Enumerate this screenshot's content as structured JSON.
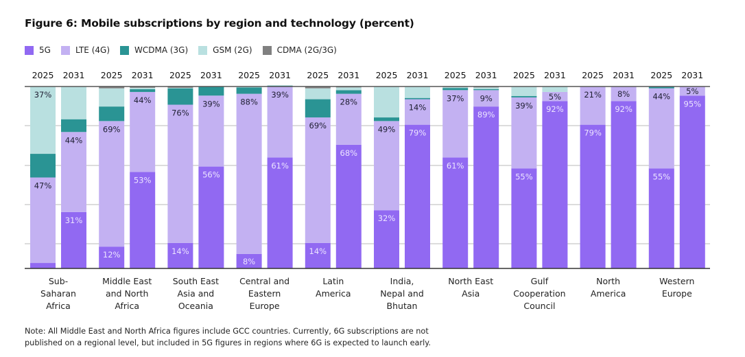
{
  "title": "Figure 6: Mobile subscriptions by region and technology (percent)",
  "note": [
    "Note: All Middle East and North Africa figures include GCC countries. Currently, 6G subscriptions are not",
    "published on a regional level, but included in 5G figures in regions where 6G is expected to launch early."
  ],
  "legend": [
    {
      "name": "5G",
      "color": "#9169F2"
    },
    {
      "name": "LTE (4G)",
      "color": "#C3B1F2"
    },
    {
      "name": "WCDMA (3G)",
      "color": "#2A9494"
    },
    {
      "name": "GSM (2G)",
      "color": "#B9E0E0"
    },
    {
      "name": "CDMA (2G/3G)",
      "color": "#808080"
    }
  ],
  "chart_data": {
    "type": "bar",
    "stacked": true,
    "title": "Figure 6: Mobile subscriptions by region and technology (percent)",
    "xlabel": "",
    "ylabel": "",
    "ylim": [
      0,
      100
    ],
    "grid": true,
    "legend_position": "top-left",
    "years": [
      "2025",
      "2031"
    ],
    "categories": [
      "Sub-Saharan Africa",
      "Middle East and North Africa",
      "South East Asia and Oceania",
      "Central and Eastern Europe",
      "Latin America",
      "India, Nepal and Bhutan",
      "North East Asia",
      "Gulf Cooperation Council",
      "North America",
      "Western Europe"
    ],
    "category_lines": [
      [
        "Sub-",
        "Saharan",
        "Africa"
      ],
      [
        "Middle East",
        "and North",
        "Africa"
      ],
      [
        "South East",
        "Asia and",
        "Oceania"
      ],
      [
        "Central and",
        "Eastern",
        "Europe"
      ],
      [
        "Latin",
        "America"
      ],
      [
        "India,",
        "Nepal and",
        "Bhutan"
      ],
      [
        "North East",
        "Asia"
      ],
      [
        "Gulf",
        "Cooperation",
        "Council"
      ],
      [
        "North",
        "America"
      ],
      [
        "Western",
        "Europe"
      ]
    ],
    "series_order": [
      "5G",
      "LTE (4G)",
      "WCDMA (3G)",
      "GSM (2G)",
      "CDMA (2G/3G)"
    ],
    "bars": [
      {
        "region": "Sub-Saharan Africa",
        "year": "2025",
        "values": [
          3,
          47,
          13,
          37,
          0
        ],
        "labels": [
          "",
          "47%",
          "",
          "37%",
          ""
        ]
      },
      {
        "region": "Sub-Saharan Africa",
        "year": "2031",
        "values": [
          31,
          44,
          7,
          18,
          0
        ],
        "labels": [
          "31%",
          "44%",
          "",
          "",
          ""
        ]
      },
      {
        "region": "Middle East and North Africa",
        "year": "2025",
        "values": [
          12,
          69,
          8,
          10,
          1
        ],
        "labels": [
          "12%",
          "69%",
          "",
          "",
          ""
        ]
      },
      {
        "region": "Middle East and North Africa",
        "year": "2031",
        "values": [
          53,
          44,
          1.5,
          0.8,
          0.7
        ],
        "labels": [
          "53%",
          "44%",
          "",
          "",
          ""
        ]
      },
      {
        "region": "South East Asia and Oceania",
        "year": "2025",
        "values": [
          14,
          76,
          9,
          0.3,
          0.7
        ],
        "labels": [
          "14%",
          "76%",
          "",
          "",
          ""
        ]
      },
      {
        "region": "South East Asia and Oceania",
        "year": "2031",
        "values": [
          56,
          39,
          5,
          0,
          0
        ],
        "labels": [
          "56%",
          "39%",
          "",
          "",
          ""
        ]
      },
      {
        "region": "Central and Eastern Europe",
        "year": "2025",
        "values": [
          8,
          88,
          3.5,
          0.5,
          0
        ],
        "labels": [
          "8%",
          "88%",
          "",
          "",
          ""
        ]
      },
      {
        "region": "Central and Eastern Europe",
        "year": "2031",
        "values": [
          61,
          39,
          0.5,
          0,
          0
        ],
        "labels": [
          "61%",
          "39%",
          "",
          "",
          ""
        ]
      },
      {
        "region": "Latin America",
        "year": "2025",
        "values": [
          14,
          69,
          10,
          6,
          1
        ],
        "labels": [
          "14%",
          "69%",
          "",
          "",
          ""
        ]
      },
      {
        "region": "Latin America",
        "year": "2031",
        "values": [
          68,
          28,
          2,
          1.5,
          0.5
        ],
        "labels": [
          "68%",
          "28%",
          "",
          "",
          ""
        ]
      },
      {
        "region": "India, Nepal and Bhutan",
        "year": "2025",
        "values": [
          32,
          49,
          2,
          17,
          0
        ],
        "labels": [
          "32%",
          "49%",
          "",
          "",
          ""
        ]
      },
      {
        "region": "India, Nepal and Bhutan",
        "year": "2031",
        "values": [
          79,
          14,
          0.7,
          6.3,
          0
        ],
        "labels": [
          "79%",
          "14%",
          "",
          "",
          ""
        ]
      },
      {
        "region": "North East Asia",
        "year": "2025",
        "values": [
          61,
          37,
          1.2,
          0.5,
          0.3
        ],
        "labels": [
          "61%",
          "37%",
          "",
          "",
          ""
        ]
      },
      {
        "region": "North East Asia",
        "year": "2031",
        "values": [
          89,
          9,
          0.6,
          0.9,
          0.5
        ],
        "labels": [
          "89%",
          "9%",
          "",
          "",
          ""
        ]
      },
      {
        "region": "Gulf Cooperation Council",
        "year": "2025",
        "values": [
          55,
          39,
          0.8,
          5.2,
          0
        ],
        "labels": [
          "55%",
          "39%",
          "",
          "",
          ""
        ]
      },
      {
        "region": "Gulf Cooperation Council",
        "year": "2031",
        "values": [
          92,
          5,
          0,
          3,
          0
        ],
        "labels": [
          "92%",
          "5%",
          "",
          "",
          ""
        ]
      },
      {
        "region": "North America",
        "year": "2025",
        "values": [
          79,
          21,
          0,
          0,
          0
        ],
        "labels": [
          "79%",
          "21%",
          "",
          "",
          ""
        ]
      },
      {
        "region": "North America",
        "year": "2031",
        "values": [
          92,
          8,
          0,
          0,
          0
        ],
        "labels": [
          "92%",
          "8%",
          "",
          "",
          ""
        ]
      },
      {
        "region": "Western Europe",
        "year": "2025",
        "values": [
          55,
          44,
          1,
          0,
          0
        ],
        "labels": [
          "55%",
          "44%",
          "",
          "",
          ""
        ]
      },
      {
        "region": "Western Europe",
        "year": "2031",
        "values": [
          95,
          5,
          0,
          0,
          0
        ],
        "labels": [
          "95%",
          "5%",
          "",
          "",
          ""
        ]
      }
    ]
  }
}
